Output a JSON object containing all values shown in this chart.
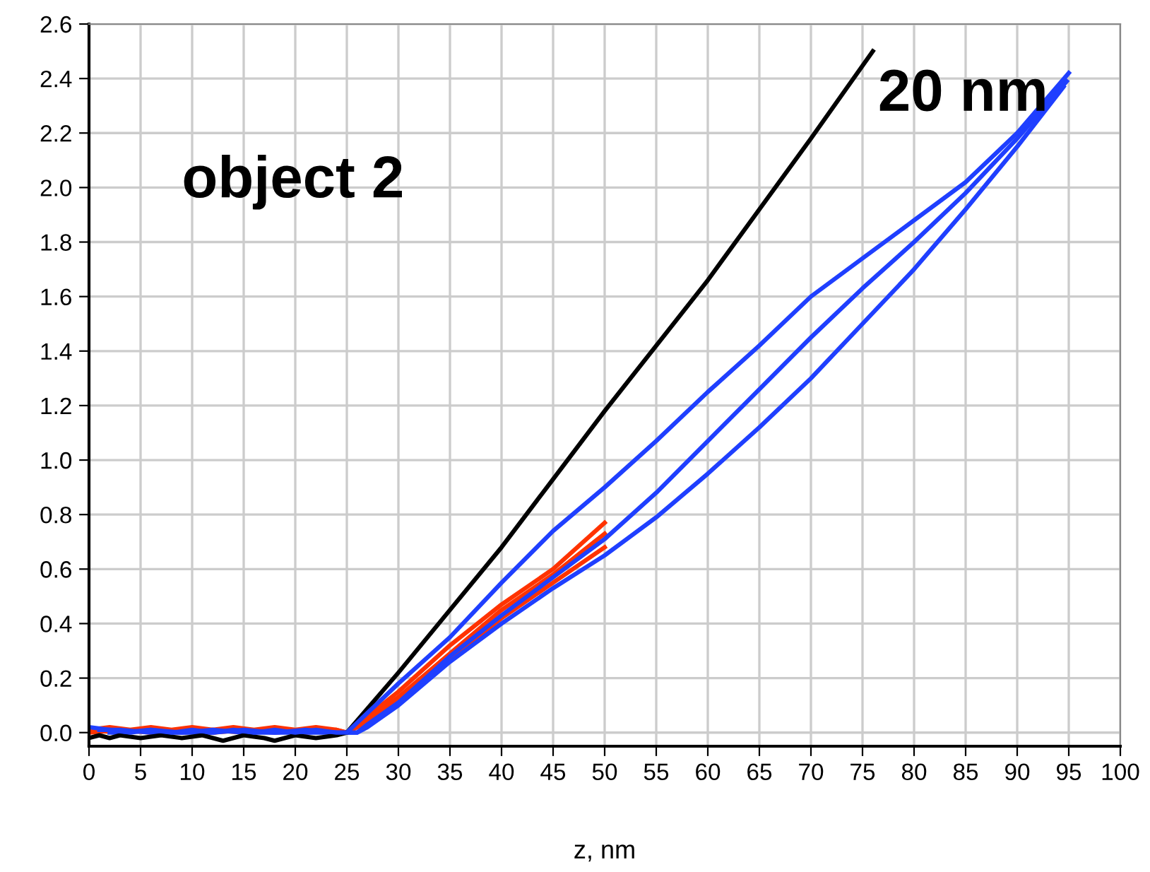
{
  "chart_data": {
    "type": "line",
    "xlabel": "z, nm",
    "annotations": [
      "object 2",
      "20 nm"
    ],
    "grid": true,
    "xlim": [
      0,
      100
    ],
    "ylim": [
      -0.05,
      2.6
    ],
    "xticks": [
      0,
      5,
      10,
      15,
      20,
      25,
      30,
      35,
      40,
      45,
      50,
      55,
      60,
      65,
      70,
      75,
      80,
      85,
      90,
      95,
      100
    ],
    "yticks": [
      {
        "value": 0,
        "label": "0.0"
      },
      {
        "value": 0.2,
        "label": "0.2"
      },
      {
        "value": 0.4,
        "label": "0.4"
      },
      {
        "value": 0.6,
        "label": "0.6"
      },
      {
        "value": 0.8,
        "label": "0.8"
      },
      {
        "value": 1.0,
        "label": "1.0"
      },
      {
        "value": 1.2,
        "label": "1.2"
      },
      {
        "value": 1.4,
        "label": "1.4"
      },
      {
        "value": 1.6,
        "label": "1.6"
      },
      {
        "value": 1.8,
        "label": "1.8"
      },
      {
        "value": 2.0,
        "label": "2.0"
      },
      {
        "value": 2.2,
        "label": "2.2"
      },
      {
        "value": 2.4,
        "label": "2.4"
      },
      {
        "value": 2.6,
        "label": "2.6"
      }
    ],
    "series": [
      {
        "color": "#ff3300",
        "x": [
          0,
          2,
          4,
          6,
          8,
          10,
          12,
          14,
          16,
          18,
          20,
          22,
          24,
          25,
          27,
          30,
          35,
          40,
          45,
          50
        ],
        "values": [
          0.01,
          0.02,
          0.01,
          0.02,
          0.01,
          0.02,
          0.01,
          0.02,
          0.01,
          0.02,
          0.01,
          0.02,
          0.01,
          0.0,
          0.06,
          0.15,
          0.32,
          0.47,
          0.6,
          0.77
        ]
      },
      {
        "color": "#ff3300",
        "x": [
          0,
          3,
          6,
          9,
          12,
          15,
          18,
          21,
          24,
          25,
          27,
          30,
          35,
          40,
          45,
          50
        ],
        "values": [
          0.0,
          0.01,
          0.0,
          0.01,
          0.0,
          0.01,
          0.0,
          0.01,
          0.0,
          0.0,
          0.05,
          0.13,
          0.29,
          0.45,
          0.58,
          0.73
        ]
      },
      {
        "color": "#ff3300",
        "x": [
          0,
          3,
          6,
          9,
          12,
          15,
          18,
          21,
          24,
          25,
          27,
          30,
          35,
          40,
          45,
          50
        ],
        "values": [
          0.01,
          0.0,
          0.01,
          0.0,
          0.01,
          0.0,
          0.01,
          0.0,
          0.01,
          0.0,
          0.04,
          0.12,
          0.27,
          0.42,
          0.55,
          0.68
        ]
      },
      {
        "color": "#1f3fff",
        "x": [
          2,
          3,
          6,
          9,
          12,
          15,
          18,
          21,
          24,
          26,
          27,
          30,
          35,
          40,
          45,
          50,
          55,
          60,
          65,
          70,
          75,
          80,
          85,
          90,
          94.5
        ],
        "values": [
          0.0,
          0.0,
          0.01,
          0.0,
          0.0,
          0.01,
          0.0,
          0.0,
          0.0,
          0.0,
          0.02,
          0.1,
          0.26,
          0.4,
          0.53,
          0.65,
          0.79,
          0.95,
          1.12,
          1.3,
          1.5,
          1.7,
          1.92,
          2.15,
          2.37
        ]
      },
      {
        "color": "#1f3fff",
        "x": [
          1,
          3,
          6,
          9,
          12,
          15,
          18,
          21,
          24,
          26,
          27,
          30,
          35,
          40,
          45,
          50,
          55,
          60,
          65,
          70,
          75,
          80,
          85,
          90,
          94.8
        ],
        "values": [
          0.01,
          0.01,
          0.0,
          0.0,
          0.01,
          0.0,
          0.0,
          0.01,
          0.0,
          0.0,
          0.03,
          0.11,
          0.28,
          0.43,
          0.57,
          0.71,
          0.88,
          1.07,
          1.26,
          1.45,
          1.63,
          1.8,
          1.98,
          2.18,
          2.39
        ]
      },
      {
        "color": "#000000",
        "x": [
          0,
          1,
          2,
          3,
          5,
          7,
          9,
          11,
          13,
          15,
          17,
          18,
          20,
          22,
          24,
          25,
          30,
          35,
          40,
          45,
          50,
          55,
          60,
          65,
          70,
          76
        ],
        "values": [
          -0.02,
          -0.01,
          -0.02,
          -0.01,
          -0.02,
          -0.01,
          -0.02,
          -0.01,
          -0.03,
          -0.01,
          -0.02,
          -0.03,
          -0.01,
          -0.02,
          -0.01,
          0.0,
          0.22,
          0.45,
          0.68,
          0.93,
          1.18,
          1.42,
          1.66,
          1.92,
          2.18,
          2.5
        ]
      },
      {
        "color": "#1f3fff",
        "x": [
          0,
          2,
          4,
          6,
          8,
          10,
          12,
          14,
          16,
          18,
          20,
          22,
          24,
          25,
          30,
          35,
          40,
          45,
          50,
          55,
          60,
          65,
          70,
          75,
          80,
          85,
          90,
          95
        ],
        "values": [
          0.02,
          0.01,
          0.0,
          0.01,
          0.0,
          0.01,
          0.0,
          0.01,
          0.0,
          0.01,
          0.0,
          0.01,
          0.0,
          0.0,
          0.18,
          0.35,
          0.55,
          0.74,
          0.9,
          1.07,
          1.25,
          1.42,
          1.6,
          1.74,
          1.88,
          2.02,
          2.2,
          2.42
        ]
      }
    ]
  }
}
